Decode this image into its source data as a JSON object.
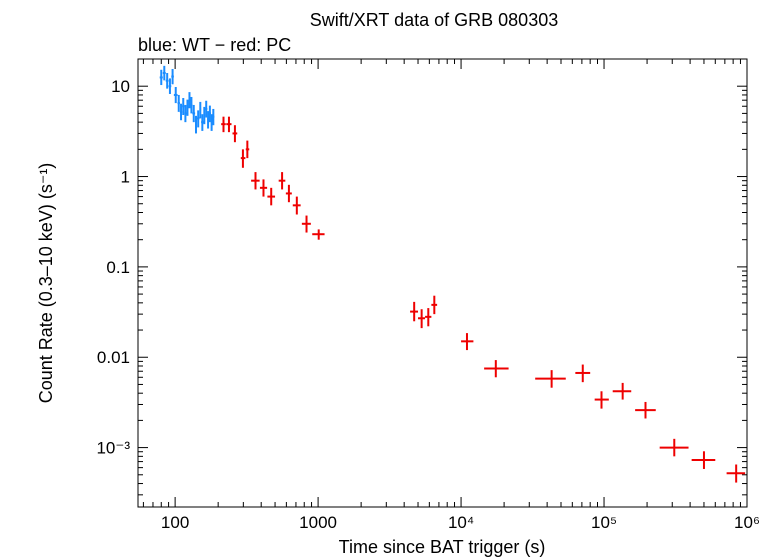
{
  "chart_data": {
    "type": "scatter",
    "title": "Swift/XRT data of GRB 080303",
    "subtitle": "blue: WT − red: PC",
    "xlabel": "Time since BAT trigger (s)",
    "ylabel": "Count Rate (0.3–10 keV) (s⁻¹)",
    "xscale": "log",
    "yscale": "log",
    "xlim": [
      55,
      1000000
    ],
    "ylim": [
      0.00022,
      20
    ],
    "x_ticks": [
      {
        "value": 100,
        "label": "100"
      },
      {
        "value": 1000,
        "label": "1000"
      },
      {
        "value": 10000,
        "label": "10⁴"
      },
      {
        "value": 100000,
        "label": "10⁵"
      },
      {
        "value": 1000000,
        "label": "10⁶"
      }
    ],
    "y_ticks": [
      {
        "value": 10,
        "label": "10"
      },
      {
        "value": 1,
        "label": "1"
      },
      {
        "value": 0.1,
        "label": "0.1"
      },
      {
        "value": 0.01,
        "label": "0.01"
      },
      {
        "value": 0.001,
        "label": "10⁻³"
      }
    ],
    "series": [
      {
        "name": "WT",
        "color": "#1a8cff",
        "points": [
          {
            "x": 80,
            "y": 12.5,
            "xlo": 78,
            "xhi": 82,
            "ylo": 10.3,
            "yhi": 15.2
          },
          {
            "x": 84,
            "y": 14.0,
            "xlo": 82,
            "xhi": 86,
            "ylo": 11.6,
            "yhi": 16.8
          },
          {
            "x": 88,
            "y": 11.5,
            "xlo": 86,
            "xhi": 90,
            "ylo": 9.4,
            "yhi": 14.0
          },
          {
            "x": 92,
            "y": 10.0,
            "xlo": 90,
            "xhi": 94,
            "ylo": 8.2,
            "yhi": 12.2
          },
          {
            "x": 96,
            "y": 12.8,
            "xlo": 94,
            "xhi": 98,
            "ylo": 10.5,
            "yhi": 15.5
          },
          {
            "x": 101,
            "y": 8.0,
            "xlo": 98,
            "xhi": 104,
            "ylo": 6.5,
            "yhi": 9.8
          },
          {
            "x": 106,
            "y": 6.5,
            "xlo": 104,
            "xhi": 108,
            "ylo": 5.2,
            "yhi": 8.0
          },
          {
            "x": 110,
            "y": 5.2,
            "xlo": 108,
            "xhi": 112,
            "ylo": 4.2,
            "yhi": 6.4
          },
          {
            "x": 114,
            "y": 6.0,
            "xlo": 112,
            "xhi": 116,
            "ylo": 4.8,
            "yhi": 7.4
          },
          {
            "x": 118,
            "y": 5.0,
            "xlo": 116,
            "xhi": 120,
            "ylo": 4.0,
            "yhi": 6.2
          },
          {
            "x": 122,
            "y": 5.8,
            "xlo": 120,
            "xhi": 124,
            "ylo": 4.7,
            "yhi": 7.1
          },
          {
            "x": 126,
            "y": 7.0,
            "xlo": 124,
            "xhi": 128,
            "ylo": 5.7,
            "yhi": 8.6
          },
          {
            "x": 130,
            "y": 6.2,
            "xlo": 128,
            "xhi": 132,
            "ylo": 5.0,
            "yhi": 7.6
          },
          {
            "x": 135,
            "y": 5.0,
            "xlo": 132,
            "xhi": 138,
            "ylo": 4.0,
            "yhi": 6.2
          },
          {
            "x": 140,
            "y": 3.8,
            "xlo": 138,
            "xhi": 142,
            "ylo": 3.0,
            "yhi": 4.7
          },
          {
            "x": 145,
            "y": 4.4,
            "xlo": 142,
            "xhi": 148,
            "ylo": 3.5,
            "yhi": 5.4
          },
          {
            "x": 150,
            "y": 5.5,
            "xlo": 148,
            "xhi": 152,
            "ylo": 4.4,
            "yhi": 6.7
          },
          {
            "x": 155,
            "y": 4.0,
            "xlo": 152,
            "xhi": 158,
            "ylo": 3.2,
            "yhi": 4.9
          },
          {
            "x": 160,
            "y": 4.8,
            "xlo": 158,
            "xhi": 162,
            "ylo": 3.8,
            "yhi": 5.9
          },
          {
            "x": 165,
            "y": 5.6,
            "xlo": 162,
            "xhi": 168,
            "ylo": 4.5,
            "yhi": 6.9
          },
          {
            "x": 170,
            "y": 4.3,
            "xlo": 168,
            "xhi": 172,
            "ylo": 3.4,
            "yhi": 5.3
          },
          {
            "x": 175,
            "y": 5.0,
            "xlo": 172,
            "xhi": 178,
            "ylo": 4.0,
            "yhi": 6.1
          },
          {
            "x": 180,
            "y": 4.0,
            "xlo": 178,
            "xhi": 182,
            "ylo": 3.2,
            "yhi": 4.9
          },
          {
            "x": 185,
            "y": 4.6,
            "xlo": 182,
            "xhi": 188,
            "ylo": 3.7,
            "yhi": 5.6
          }
        ]
      },
      {
        "name": "PC",
        "color": "#ee0000",
        "points": [
          {
            "x": 218,
            "y": 3.8,
            "xlo": 210,
            "xhi": 226,
            "ylo": 3.1,
            "yhi": 4.6
          },
          {
            "x": 238,
            "y": 3.8,
            "xlo": 228,
            "xhi": 248,
            "ylo": 3.1,
            "yhi": 4.6
          },
          {
            "x": 262,
            "y": 3.0,
            "xlo": 252,
            "xhi": 272,
            "ylo": 2.4,
            "yhi": 3.7
          },
          {
            "x": 298,
            "y": 1.6,
            "xlo": 288,
            "xhi": 310,
            "ylo": 1.25,
            "yhi": 2.0
          },
          {
            "x": 320,
            "y": 2.0,
            "xlo": 312,
            "xhi": 330,
            "ylo": 1.6,
            "yhi": 2.5
          },
          {
            "x": 365,
            "y": 0.9,
            "xlo": 340,
            "xhi": 390,
            "ylo": 0.72,
            "yhi": 1.12
          },
          {
            "x": 415,
            "y": 0.75,
            "xlo": 392,
            "xhi": 440,
            "ylo": 0.6,
            "yhi": 0.93
          },
          {
            "x": 470,
            "y": 0.6,
            "xlo": 442,
            "xhi": 500,
            "ylo": 0.48,
            "yhi": 0.75
          },
          {
            "x": 560,
            "y": 0.9,
            "xlo": 530,
            "xhi": 590,
            "ylo": 0.72,
            "yhi": 1.12
          },
          {
            "x": 625,
            "y": 0.65,
            "xlo": 595,
            "xhi": 655,
            "ylo": 0.52,
            "yhi": 0.81
          },
          {
            "x": 710,
            "y": 0.48,
            "xlo": 665,
            "xhi": 755,
            "ylo": 0.38,
            "yhi": 0.6
          },
          {
            "x": 830,
            "y": 0.3,
            "xlo": 770,
            "xhi": 890,
            "ylo": 0.24,
            "yhi": 0.37
          },
          {
            "x": 1010,
            "y": 0.23,
            "xlo": 910,
            "xhi": 1110,
            "ylo": 0.2,
            "yhi": 0.26
          },
          {
            "x": 4700,
            "y": 0.032,
            "xlo": 4400,
            "xhi": 5000,
            "ylo": 0.025,
            "yhi": 0.041
          },
          {
            "x": 5300,
            "y": 0.027,
            "xlo": 5000,
            "xhi": 5600,
            "ylo": 0.021,
            "yhi": 0.034
          },
          {
            "x": 5900,
            "y": 0.028,
            "xlo": 5600,
            "xhi": 6200,
            "ylo": 0.022,
            "yhi": 0.035
          },
          {
            "x": 6500,
            "y": 0.038,
            "xlo": 6200,
            "xhi": 6800,
            "ylo": 0.03,
            "yhi": 0.048
          },
          {
            "x": 11000,
            "y": 0.015,
            "xlo": 10000,
            "xhi": 12200,
            "ylo": 0.012,
            "yhi": 0.0185
          },
          {
            "x": 17500,
            "y": 0.0075,
            "xlo": 14500,
            "xhi": 21500,
            "ylo": 0.006,
            "yhi": 0.0093
          },
          {
            "x": 43000,
            "y": 0.0058,
            "xlo": 33000,
            "xhi": 54000,
            "ylo": 0.0046,
            "yhi": 0.0072
          },
          {
            "x": 71000,
            "y": 0.0067,
            "xlo": 63000,
            "xhi": 80000,
            "ylo": 0.0053,
            "yhi": 0.0083
          },
          {
            "x": 96000,
            "y": 0.0034,
            "xlo": 86000,
            "xhi": 108000,
            "ylo": 0.0027,
            "yhi": 0.0042
          },
          {
            "x": 135000,
            "y": 0.0042,
            "xlo": 115000,
            "xhi": 155000,
            "ylo": 0.0034,
            "yhi": 0.0052
          },
          {
            "x": 195000,
            "y": 0.0026,
            "xlo": 165000,
            "xhi": 230000,
            "ylo": 0.0021,
            "yhi": 0.0032
          },
          {
            "x": 310000,
            "y": 0.001,
            "xlo": 245000,
            "xhi": 390000,
            "ylo": 0.0008,
            "yhi": 0.00125
          },
          {
            "x": 500000,
            "y": 0.00073,
            "xlo": 410000,
            "xhi": 600000,
            "ylo": 0.00058,
            "yhi": 0.00091
          },
          {
            "x": 840000,
            "y": 0.00052,
            "xlo": 720000,
            "xhi": 970000,
            "ylo": 0.00041,
            "yhi": 0.00065
          }
        ]
      }
    ]
  }
}
